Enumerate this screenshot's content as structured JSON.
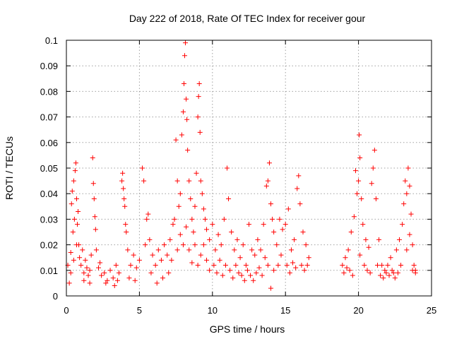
{
  "chart_data": {
    "type": "scatter",
    "title": "Day 222 of 2018, Rate Of TEC Index for receiver gour",
    "xlabel": "GPS time / hours",
    "ylabel": "ROTI / TECUs",
    "xlim": [
      0,
      25
    ],
    "ylim": [
      0,
      0.1
    ],
    "xticks": [
      "0",
      "5",
      "10",
      "15",
      "20",
      "25"
    ],
    "yticks": [
      "0",
      "0.01",
      "0.02",
      "0.03",
      "0.04",
      "0.05",
      "0.06",
      "0.07",
      "0.08",
      "0.09",
      "0.1"
    ],
    "grid": true,
    "marker": "plus",
    "color": "#ff0000",
    "series": [
      {
        "points": [
          [
            0.1,
            0.012
          ],
          [
            0.2,
            0.005
          ],
          [
            0.3,
            0.009
          ],
          [
            0.35,
            0.036
          ],
          [
            0.4,
            0.041
          ],
          [
            0.45,
            0.025
          ],
          [
            0.5,
            0.045
          ],
          [
            0.55,
            0.03
          ],
          [
            0.6,
            0.049
          ],
          [
            0.65,
            0.052
          ],
          [
            0.7,
            0.038
          ],
          [
            0.75,
            0.028
          ],
          [
            0.8,
            0.033
          ],
          [
            0.85,
            0.02
          ],
          [
            0.9,
            0.015
          ],
          [
            1.0,
            0.012
          ],
          [
            1.1,
            0.018
          ],
          [
            1.2,
            0.009
          ],
          [
            1.3,
            0.014
          ],
          [
            1.4,
            0.011
          ],
          [
            1.5,
            0.008
          ],
          [
            1.6,
            0.01
          ],
          [
            1.7,
            0.016
          ],
          [
            1.8,
            0.054
          ],
          [
            1.85,
            0.044
          ],
          [
            1.9,
            0.038
          ],
          [
            1.95,
            0.031
          ],
          [
            2.0,
            0.026
          ],
          [
            2.05,
            0.018
          ],
          [
            2.2,
            0.011
          ],
          [
            2.4,
            0.008
          ],
          [
            2.6,
            0.009
          ],
          [
            2.8,
            0.006
          ],
          [
            3.0,
            0.01
          ],
          [
            3.2,
            0.007
          ],
          [
            3.4,
            0.012
          ],
          [
            3.6,
            0.009
          ],
          [
            3.8,
            0.045
          ],
          [
            3.85,
            0.048
          ],
          [
            3.9,
            0.042
          ],
          [
            3.95,
            0.038
          ],
          [
            4.0,
            0.035
          ],
          [
            4.05,
            0.028
          ],
          [
            4.1,
            0.025
          ],
          [
            4.2,
            0.018
          ],
          [
            4.4,
            0.012
          ],
          [
            4.6,
            0.016
          ],
          [
            4.8,
            0.011
          ],
          [
            5.0,
            0.014
          ],
          [
            5.2,
            0.05
          ],
          [
            5.3,
            0.045
          ],
          [
            5.5,
            0.03
          ],
          [
            5.6,
            0.032
          ],
          [
            5.7,
            0.022
          ],
          [
            5.9,
            0.016
          ],
          [
            6.1,
            0.012
          ],
          [
            6.3,
            0.018
          ],
          [
            6.5,
            0.014
          ],
          [
            6.7,
            0.02
          ],
          [
            6.9,
            0.016
          ],
          [
            7.1,
            0.022
          ],
          [
            7.3,
            0.028
          ],
          [
            7.4,
            0.03
          ],
          [
            7.5,
            0.061
          ],
          [
            7.6,
            0.045
          ],
          [
            7.7,
            0.035
          ],
          [
            7.8,
            0.04
          ],
          [
            7.9,
            0.063
          ],
          [
            8.0,
            0.072
          ],
          [
            8.05,
            0.083
          ],
          [
            8.1,
            0.094
          ],
          [
            8.15,
            0.099
          ],
          [
            8.2,
            0.077
          ],
          [
            8.25,
            0.069
          ],
          [
            8.3,
            0.057
          ],
          [
            8.4,
            0.045
          ],
          [
            8.5,
            0.038
          ],
          [
            8.6,
            0.03
          ],
          [
            8.7,
            0.025
          ],
          [
            8.8,
            0.035
          ],
          [
            8.9,
            0.048
          ],
          [
            9.0,
            0.07
          ],
          [
            9.05,
            0.078
          ],
          [
            9.1,
            0.083
          ],
          [
            9.15,
            0.064
          ],
          [
            9.2,
            0.045
          ],
          [
            9.3,
            0.04
          ],
          [
            9.4,
            0.034
          ],
          [
            9.5,
            0.03
          ],
          [
            9.6,
            0.026
          ],
          [
            9.8,
            0.022
          ],
          [
            10.0,
            0.028
          ],
          [
            10.2,
            0.018
          ],
          [
            10.4,
            0.024
          ],
          [
            10.6,
            0.02
          ],
          [
            10.8,
            0.03
          ],
          [
            11.0,
            0.05
          ],
          [
            11.1,
            0.038
          ],
          [
            11.3,
            0.025
          ],
          [
            11.5,
            0.018
          ],
          [
            11.7,
            0.022
          ],
          [
            11.9,
            0.015
          ],
          [
            12.1,
            0.02
          ],
          [
            12.3,
            0.012
          ],
          [
            12.5,
            0.028
          ],
          [
            12.7,
            0.018
          ],
          [
            12.9,
            0.016
          ],
          [
            13.1,
            0.022
          ],
          [
            13.3,
            0.018
          ],
          [
            13.5,
            0.028
          ],
          [
            13.7,
            0.043
          ],
          [
            13.8,
            0.045
          ],
          [
            13.9,
            0.052
          ],
          [
            14.0,
            0.036
          ],
          [
            14.1,
            0.03
          ],
          [
            14.2,
            0.025
          ],
          [
            14.4,
            0.02
          ],
          [
            14.6,
            0.03
          ],
          [
            14.8,
            0.026
          ],
          [
            15.0,
            0.028
          ],
          [
            15.2,
            0.034
          ],
          [
            15.4,
            0.018
          ],
          [
            15.6,
            0.022
          ],
          [
            15.8,
            0.042
          ],
          [
            15.9,
            0.047
          ],
          [
            16.0,
            0.036
          ],
          [
            16.2,
            0.025
          ],
          [
            16.4,
            0.02
          ],
          [
            16.6,
            0.015
          ],
          [
            18.9,
            0.012
          ],
          [
            19.1,
            0.015
          ],
          [
            19.3,
            0.018
          ],
          [
            19.5,
            0.025
          ],
          [
            19.7,
            0.031
          ],
          [
            19.8,
            0.049
          ],
          [
            19.9,
            0.04
          ],
          [
            20.0,
            0.045
          ],
          [
            20.05,
            0.063
          ],
          [
            20.1,
            0.054
          ],
          [
            20.2,
            0.038
          ],
          [
            20.3,
            0.028
          ],
          [
            20.5,
            0.022
          ],
          [
            20.7,
            0.019
          ],
          [
            20.9,
            0.044
          ],
          [
            21.0,
            0.05
          ],
          [
            21.1,
            0.057
          ],
          [
            21.2,
            0.038
          ],
          [
            21.4,
            0.022
          ],
          [
            21.6,
            0.012
          ],
          [
            21.8,
            0.01
          ],
          [
            22.0,
            0.012
          ],
          [
            22.2,
            0.015
          ],
          [
            22.4,
            0.009
          ],
          [
            22.6,
            0.018
          ],
          [
            22.8,
            0.022
          ],
          [
            23.0,
            0.028
          ],
          [
            23.1,
            0.036
          ],
          [
            23.2,
            0.045
          ],
          [
            23.3,
            0.04
          ],
          [
            23.4,
            0.05
          ],
          [
            23.5,
            0.043
          ],
          [
            23.6,
            0.032
          ],
          [
            23.7,
            0.02
          ],
          [
            23.8,
            0.012
          ],
          [
            23.9,
            0.01
          ],
          [
            0.3,
            0.017
          ],
          [
            0.5,
            0.014
          ],
          [
            0.7,
            0.02
          ],
          [
            1.2,
            0.006
          ],
          [
            1.6,
            0.005
          ],
          [
            2.3,
            0.013
          ],
          [
            2.7,
            0.005
          ],
          [
            3.3,
            0.004
          ],
          [
            3.5,
            0.006
          ],
          [
            4.3,
            0.007
          ],
          [
            4.7,
            0.006
          ],
          [
            5.4,
            0.02
          ],
          [
            5.8,
            0.009
          ],
          [
            6.2,
            0.005
          ],
          [
            6.6,
            0.007
          ],
          [
            7.0,
            0.009
          ],
          [
            7.2,
            0.014
          ],
          [
            7.6,
            0.018
          ],
          [
            7.8,
            0.024
          ],
          [
            8.0,
            0.02
          ],
          [
            8.2,
            0.027
          ],
          [
            8.4,
            0.018
          ],
          [
            8.6,
            0.013
          ],
          [
            8.8,
            0.02
          ],
          [
            9.0,
            0.012
          ],
          [
            9.2,
            0.016
          ],
          [
            9.4,
            0.02
          ],
          [
            9.6,
            0.014
          ],
          [
            9.8,
            0.01
          ],
          [
            10.1,
            0.012
          ],
          [
            10.3,
            0.009
          ],
          [
            10.5,
            0.014
          ],
          [
            10.7,
            0.008
          ],
          [
            10.9,
            0.012
          ],
          [
            11.2,
            0.01
          ],
          [
            11.4,
            0.007
          ],
          [
            11.6,
            0.012
          ],
          [
            11.8,
            0.009
          ],
          [
            12.0,
            0.008
          ],
          [
            12.2,
            0.006
          ],
          [
            12.4,
            0.01
          ],
          [
            12.6,
            0.008
          ],
          [
            12.8,
            0.006
          ],
          [
            13.0,
            0.009
          ],
          [
            13.2,
            0.011
          ],
          [
            13.4,
            0.008
          ],
          [
            13.6,
            0.015
          ],
          [
            13.8,
            0.012
          ],
          [
            14.0,
            0.003
          ],
          [
            14.2,
            0.01
          ],
          [
            14.5,
            0.012
          ],
          [
            14.7,
            0.016
          ],
          [
            15.1,
            0.012
          ],
          [
            15.3,
            0.009
          ],
          [
            15.5,
            0.013
          ],
          [
            15.7,
            0.011
          ],
          [
            16.1,
            0.012
          ],
          [
            16.3,
            0.01
          ],
          [
            16.5,
            0.012
          ],
          [
            19.0,
            0.009
          ],
          [
            19.2,
            0.011
          ],
          [
            19.4,
            0.01
          ],
          [
            19.6,
            0.008
          ],
          [
            20.1,
            0.016
          ],
          [
            20.4,
            0.012
          ],
          [
            20.6,
            0.01
          ],
          [
            20.8,
            0.009
          ],
          [
            21.3,
            0.012
          ],
          [
            21.5,
            0.008
          ],
          [
            21.7,
            0.007
          ],
          [
            21.9,
            0.009
          ],
          [
            22.1,
            0.008
          ],
          [
            22.3,
            0.01
          ],
          [
            22.5,
            0.007
          ],
          [
            22.7,
            0.009
          ],
          [
            22.9,
            0.012
          ],
          [
            23.3,
            0.018
          ],
          [
            23.5,
            0.024
          ],
          [
            23.7,
            0.01
          ],
          [
            23.9,
            0.009
          ]
        ]
      }
    ]
  }
}
